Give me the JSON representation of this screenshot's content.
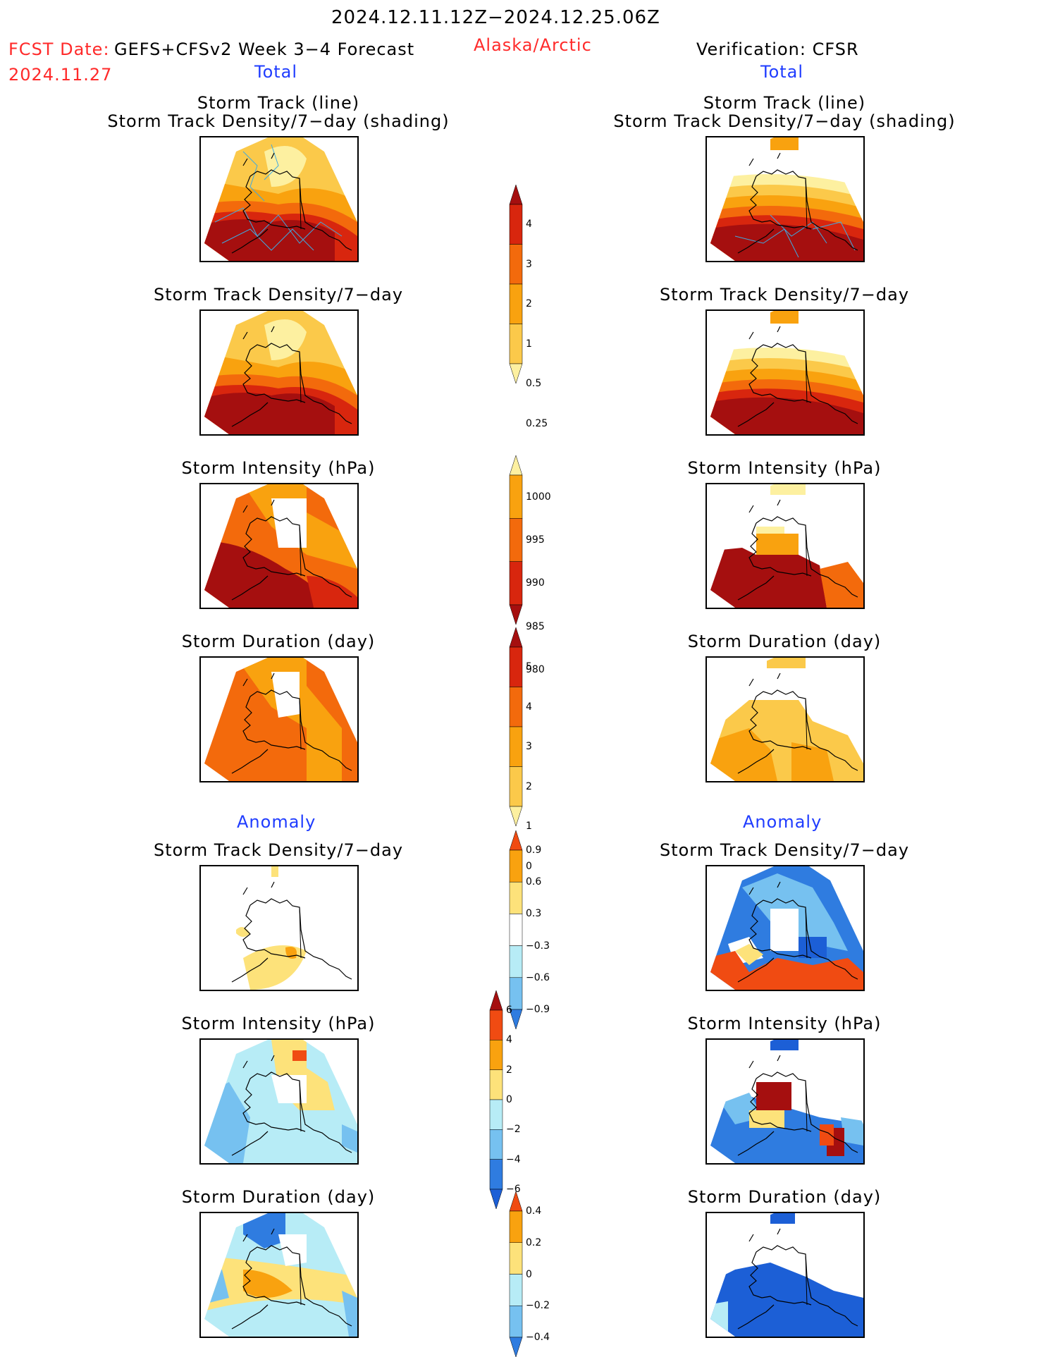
{
  "header": {
    "date_range": "2024.12.11.12Z−2024.12.25.06Z",
    "fcst_label": "FCST Date:",
    "fcst_date": "2024.11.27",
    "model": "GEFS+CFSv2 Week 3−4 Forecast",
    "region": "Alaska/Arctic",
    "verification": "Verification: CFSR"
  },
  "sections": {
    "total_left": "Total",
    "total_right": "Total",
    "anomaly_left": "Anomaly",
    "anomaly_right": "Anomaly"
  },
  "panel_titles": {
    "track_line": "Storm Track (line)",
    "track_shading": "Storm Track Density/7−day (shading)",
    "density": "Storm Track Density/7−day",
    "intensity": "Storm Intensity (hPa)",
    "duration": "Storm Duration (day)"
  },
  "colorbars": {
    "density_total": {
      "labels": [
        "4",
        "3",
        "2",
        "1",
        "0.5",
        "0.25"
      ],
      "colors": [
        "#a50f0f",
        "#d8260e",
        "#f36a0c",
        "#f9a20f",
        "#fbc94a",
        "#fdf0a0"
      ]
    },
    "intensity_total": {
      "labels": [
        "1000",
        "995",
        "990",
        "985",
        "980"
      ],
      "colors": [
        "#fdf0a0",
        "#f9a20f",
        "#f36a0c",
        "#d8260e",
        "#a50f0f"
      ]
    },
    "duration_total": {
      "labels": [
        "5",
        "4",
        "3",
        "2",
        "1",
        "0"
      ],
      "colors": [
        "#a50f0f",
        "#d8260e",
        "#f36a0c",
        "#f9a20f",
        "#fbc94a",
        "#fdf0a0"
      ]
    },
    "density_anom": {
      "labels": [
        "0.9",
        "0.6",
        "0.3",
        "−0.3",
        "−0.6",
        "−0.9"
      ],
      "colors": [
        "#f04b12",
        "#f9a20f",
        "#fde27a",
        "#ffffff",
        "#b7ecf6",
        "#76c1f0",
        "#2f7ce0"
      ]
    },
    "intensity_anom": {
      "labels": [
        "6",
        "4",
        "2",
        "0",
        "−2",
        "−4",
        "−6"
      ],
      "colors": [
        "#a50f0f",
        "#f04b12",
        "#f9a20f",
        "#fde27a",
        "#b7ecf6",
        "#76c1f0",
        "#2f7ce0",
        "#1c5fd6"
      ]
    },
    "duration_anom": {
      "labels": [
        "0.4",
        "0.2",
        "0",
        "−0.2",
        "−0.4"
      ],
      "colors": [
        "#f04b12",
        "#f9a20f",
        "#fde27a",
        "#b7ecf6",
        "#76c1f0",
        "#2f7ce0"
      ]
    }
  },
  "colors": {
    "track_line": "#3fa9e0",
    "coast": "#000000"
  }
}
